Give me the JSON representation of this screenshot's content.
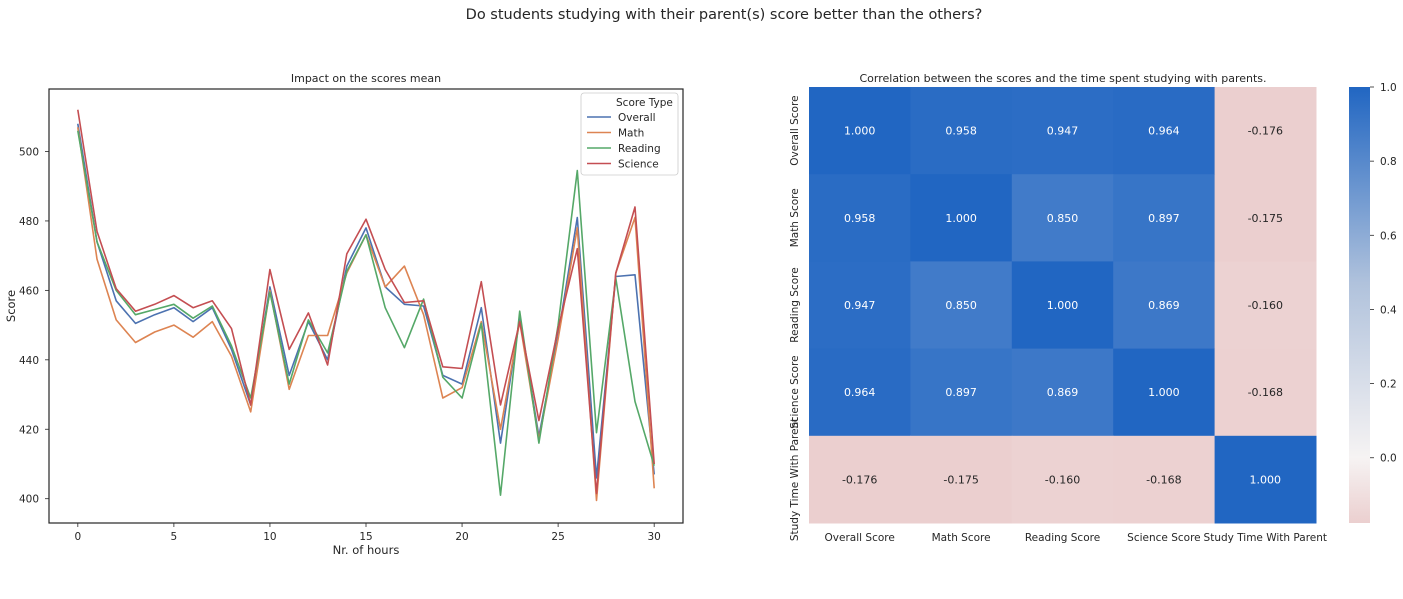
{
  "suptitle": "Do students studying with their parent(s) score better than the others?",
  "colors": {
    "overall": "#4c72b0",
    "math": "#dd8452",
    "reading": "#55a868",
    "science": "#c44e52",
    "heat_high": "#2166c2",
    "heat_mid": "#f6f3f3",
    "heat_low": "#ebcfcf",
    "dark_text": "#262626"
  },
  "chart_data": [
    {
      "type": "line",
      "title": "Impact on the scores mean",
      "xlabel": "Nr. of hours",
      "ylabel": "Score",
      "xlim": [
        -1.5,
        31.5
      ],
      "ylim": [
        393,
        518
      ],
      "xticks": [
        0,
        5,
        10,
        15,
        20,
        25,
        30
      ],
      "yticks": [
        400,
        420,
        440,
        460,
        480,
        500
      ],
      "grid": false,
      "legend": {
        "title": "Score Type",
        "position": "top-right"
      },
      "x": [
        0,
        1,
        2,
        3,
        4,
        5,
        6,
        7,
        8,
        9,
        10,
        11,
        12,
        13,
        14,
        15,
        16,
        17,
        18,
        19,
        20,
        21,
        22,
        23,
        24,
        25,
        26,
        27,
        28,
        29,
        30
      ],
      "series": [
        {
          "name": "Overall",
          "color_key": "overall",
          "values": [
            508,
            474,
            457,
            450.5,
            453,
            455,
            451,
            455,
            443,
            427,
            461,
            435.5,
            451,
            440,
            467,
            478,
            461,
            456,
            455.5,
            435.5,
            433,
            455,
            416,
            452,
            418,
            447,
            481,
            406,
            464,
            464.5,
            407
          ]
        },
        {
          "name": "Math",
          "color_key": "math",
          "values": [
            507,
            469,
            451.5,
            445,
            448,
            450,
            446.5,
            451,
            441,
            425,
            460,
            431.5,
            447,
            447,
            465,
            476,
            461,
            467,
            453,
            429,
            432,
            451,
            420,
            451,
            417,
            446,
            478,
            399.5,
            465,
            481,
            403
          ]
        },
        {
          "name": "Reading",
          "color_key": "reading",
          "values": [
            506,
            474,
            460,
            453,
            454.5,
            456,
            452,
            455.5,
            444,
            429,
            459.5,
            433,
            451.5,
            442,
            465.5,
            476,
            455,
            443.5,
            457.5,
            435,
            429,
            450.5,
            401,
            454,
            416,
            450,
            494.5,
            419,
            463.5,
            428,
            409.5
          ]
        },
        {
          "name": "Science",
          "color_key": "science",
          "values": [
            512,
            477,
            460.5,
            454,
            456,
            458.5,
            455,
            457,
            449,
            427,
            466,
            443,
            453.5,
            438.5,
            470.5,
            480.5,
            466,
            456.5,
            457,
            438,
            437.5,
            462.5,
            427,
            451,
            422.5,
            449,
            472,
            401.5,
            465,
            484,
            410
          ]
        }
      ]
    },
    {
      "type": "heatmap",
      "title": "Correlation between the scores and the time spent studying with parents.",
      "labels": [
        "Overall Score",
        "Math Score",
        "Reading Score",
        "Science Score",
        "Study Time With Parent"
      ],
      "matrix": [
        [
          1.0,
          0.958,
          0.947,
          0.964,
          -0.176
        ],
        [
          0.958,
          1.0,
          0.85,
          0.897,
          -0.175
        ],
        [
          0.947,
          0.85,
          1.0,
          0.869,
          -0.16
        ],
        [
          0.964,
          0.897,
          0.869,
          1.0,
          -0.168
        ],
        [
          -0.176,
          -0.175,
          -0.16,
          -0.168,
          1.0
        ]
      ],
      "annotation_format": "3 decimals",
      "colorbar": {
        "vmin": -0.176,
        "vmax": 1.0,
        "ticks": [
          0.0,
          0.2,
          0.4,
          0.6,
          0.8,
          1.0
        ],
        "tick_labels": [
          "0.0",
          "0.2",
          "0.4",
          "0.6",
          "0.8",
          "1.0"
        ]
      }
    }
  ]
}
